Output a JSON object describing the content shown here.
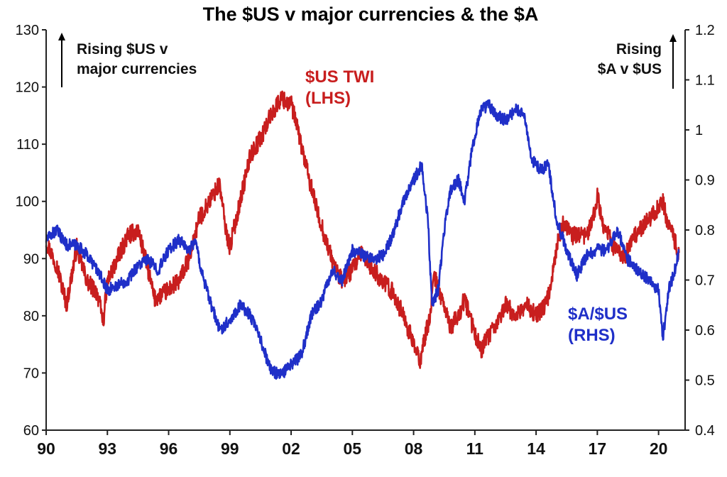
{
  "chart_data": {
    "type": "line",
    "title": "The $US v major currencies & the $A",
    "x_ticks": [
      "90",
      "93",
      "96",
      "99",
      "02",
      "05",
      "08",
      "11",
      "14",
      "17",
      "20"
    ],
    "y_left": {
      "ticks": [
        60,
        70,
        80,
        90,
        100,
        110,
        120,
        130
      ],
      "lim": [
        60,
        130
      ]
    },
    "y_right": {
      "ticks": [
        "0.4",
        "0.5",
        "0.6",
        "0.7",
        "0.8",
        "0.9",
        "1",
        "1.1",
        "1.2"
      ],
      "lim": [
        0.4,
        1.2
      ]
    },
    "annotations": {
      "left": [
        "Rising $US v",
        "major currencies"
      ],
      "right": [
        "Rising",
        "$A v $US"
      ]
    },
    "series": [
      {
        "name": "$US TWI (LHS)",
        "label_lines": [
          "$US TWI",
          "(LHS)"
        ],
        "axis": "left",
        "color": "#c81e1e",
        "points": [
          [
            1990.0,
            93
          ],
          [
            1990.5,
            89
          ],
          [
            1991.0,
            82
          ],
          [
            1991.5,
            92
          ],
          [
            1992.0,
            86
          ],
          [
            1992.5,
            84
          ],
          [
            1992.8,
            79
          ],
          [
            1993.0,
            86
          ],
          [
            1993.5,
            90
          ],
          [
            1994.0,
            94
          ],
          [
            1994.5,
            95
          ],
          [
            1995.0,
            88
          ],
          [
            1995.3,
            83
          ],
          [
            1995.8,
            84
          ],
          [
            1996.5,
            86
          ],
          [
            1997.0,
            90
          ],
          [
            1997.5,
            97
          ],
          [
            1998.0,
            100
          ],
          [
            1998.5,
            103
          ],
          [
            1998.8,
            95
          ],
          [
            1999.0,
            92
          ],
          [
            1999.5,
            100
          ],
          [
            2000.0,
            108
          ],
          [
            2000.5,
            111
          ],
          [
            2001.0,
            115
          ],
          [
            2001.5,
            118
          ],
          [
            2002.0,
            117
          ],
          [
            2002.3,
            113
          ],
          [
            2002.8,
            105
          ],
          [
            2003.3,
            98
          ],
          [
            2003.8,
            92
          ],
          [
            2004.2,
            88
          ],
          [
            2004.5,
            86
          ],
          [
            2005.0,
            88
          ],
          [
            2005.5,
            91
          ],
          [
            2006.0,
            88
          ],
          [
            2006.5,
            86
          ],
          [
            2007.0,
            84
          ],
          [
            2007.5,
            80
          ],
          [
            2008.0,
            75
          ],
          [
            2008.3,
            72
          ],
          [
            2008.8,
            80
          ],
          [
            2009.0,
            87
          ],
          [
            2009.3,
            84
          ],
          [
            2009.8,
            78
          ],
          [
            2010.2,
            80
          ],
          [
            2010.5,
            83
          ],
          [
            2010.9,
            78
          ],
          [
            2011.3,
            74
          ],
          [
            2011.6,
            76
          ],
          [
            2012.0,
            78
          ],
          [
            2012.5,
            82
          ],
          [
            2013.0,
            80
          ],
          [
            2013.5,
            82
          ],
          [
            2014.0,
            80
          ],
          [
            2014.5,
            82
          ],
          [
            2014.8,
            87
          ],
          [
            2015.0,
            92
          ],
          [
            2015.3,
            96
          ],
          [
            2015.8,
            94
          ],
          [
            2016.5,
            94
          ],
          [
            2016.8,
            97
          ],
          [
            2017.0,
            101
          ],
          [
            2017.3,
            96
          ],
          [
            2017.8,
            92
          ],
          [
            2018.3,
            90
          ],
          [
            2018.8,
            94
          ],
          [
            2019.3,
            96
          ],
          [
            2019.8,
            98
          ],
          [
            2020.2,
            100
          ],
          [
            2020.4,
            97
          ],
          [
            2020.7,
            94
          ],
          [
            2021.0,
            91
          ]
        ]
      },
      {
        "name": "$A/$US (RHS)",
        "label_lines": [
          "$A/$US",
          "(RHS)"
        ],
        "axis": "right",
        "color": "#1f2fc8",
        "points": [
          [
            1990.0,
            0.78
          ],
          [
            1990.5,
            0.8
          ],
          [
            1991.0,
            0.77
          ],
          [
            1991.5,
            0.77
          ],
          [
            1992.0,
            0.75
          ],
          [
            1992.5,
            0.72
          ],
          [
            1993.0,
            0.68
          ],
          [
            1993.5,
            0.69
          ],
          [
            1994.0,
            0.7
          ],
          [
            1994.5,
            0.73
          ],
          [
            1995.0,
            0.74
          ],
          [
            1995.5,
            0.72
          ],
          [
            1996.0,
            0.76
          ],
          [
            1996.5,
            0.78
          ],
          [
            1997.0,
            0.76
          ],
          [
            1997.3,
            0.78
          ],
          [
            1997.6,
            0.72
          ],
          [
            1998.0,
            0.66
          ],
          [
            1998.5,
            0.6
          ],
          [
            1999.0,
            0.62
          ],
          [
            1999.5,
            0.65
          ],
          [
            2000.0,
            0.63
          ],
          [
            2000.5,
            0.58
          ],
          [
            2001.0,
            0.52
          ],
          [
            2001.5,
            0.51
          ],
          [
            2002.0,
            0.53
          ],
          [
            2002.5,
            0.55
          ],
          [
            2003.0,
            0.63
          ],
          [
            2003.5,
            0.66
          ],
          [
            2004.0,
            0.72
          ],
          [
            2004.5,
            0.7
          ],
          [
            2005.0,
            0.76
          ],
          [
            2005.5,
            0.75
          ],
          [
            2006.0,
            0.74
          ],
          [
            2006.5,
            0.75
          ],
          [
            2007.0,
            0.79
          ],
          [
            2007.5,
            0.86
          ],
          [
            2008.0,
            0.9
          ],
          [
            2008.4,
            0.93
          ],
          [
            2008.7,
            0.82
          ],
          [
            2008.9,
            0.65
          ],
          [
            2009.2,
            0.68
          ],
          [
            2009.5,
            0.8
          ],
          [
            2009.8,
            0.88
          ],
          [
            2010.2,
            0.9
          ],
          [
            2010.5,
            0.86
          ],
          [
            2010.9,
            0.97
          ],
          [
            2011.3,
            1.04
          ],
          [
            2011.7,
            1.05
          ],
          [
            2012.0,
            1.03
          ],
          [
            2012.5,
            1.02
          ],
          [
            2013.0,
            1.04
          ],
          [
            2013.4,
            1.03
          ],
          [
            2013.8,
            0.94
          ],
          [
            2014.2,
            0.92
          ],
          [
            2014.6,
            0.93
          ],
          [
            2015.0,
            0.82
          ],
          [
            2015.5,
            0.76
          ],
          [
            2016.0,
            0.71
          ],
          [
            2016.5,
            0.75
          ],
          [
            2017.0,
            0.76
          ],
          [
            2017.5,
            0.76
          ],
          [
            2018.0,
            0.8
          ],
          [
            2018.5,
            0.74
          ],
          [
            2019.0,
            0.72
          ],
          [
            2019.5,
            0.7
          ],
          [
            2020.0,
            0.68
          ],
          [
            2020.2,
            0.58
          ],
          [
            2020.5,
            0.68
          ],
          [
            2020.8,
            0.72
          ],
          [
            2021.0,
            0.76
          ]
        ]
      }
    ]
  }
}
